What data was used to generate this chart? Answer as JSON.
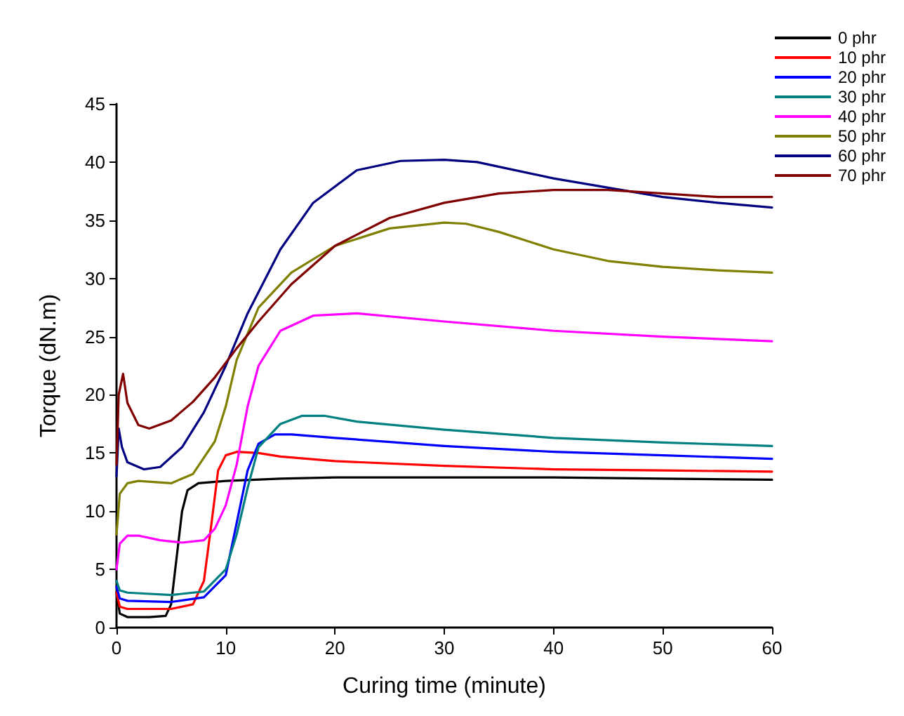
{
  "chart_data": {
    "type": "line",
    "xlabel": "Curing time (minute)",
    "ylabel": "Torque (dN.m)",
    "xlim": [
      0,
      60
    ],
    "xticks": [
      0,
      10,
      20,
      30,
      40,
      50,
      60
    ],
    "ylim": [
      0,
      45
    ],
    "yticks": [
      0,
      5,
      10,
      15,
      20,
      25,
      30,
      35,
      40,
      45
    ],
    "grid": false,
    "legend": "top right",
    "marker": "none",
    "line_style": "solid",
    "series": [
      {
        "name": "0 phr",
        "color": "#000000",
        "x": [
          0,
          0.3,
          1,
          3,
          4.5,
          5,
          5.5,
          6,
          6.5,
          7.5,
          10,
          15,
          20,
          30,
          40,
          50,
          60
        ],
        "values": [
          3,
          1.2,
          0.9,
          0.9,
          1.0,
          2,
          6,
          10,
          11.8,
          12.4,
          12.6,
          12.8,
          12.9,
          12.9,
          12.9,
          12.8,
          12.7
        ]
      },
      {
        "name": "10 phr",
        "color": "#ff0000",
        "x": [
          0,
          0.3,
          1,
          5,
          7,
          8,
          8.7,
          9.3,
          10,
          11,
          13,
          15,
          20,
          30,
          40,
          50,
          60
        ],
        "values": [
          3,
          1.8,
          1.6,
          1.6,
          2,
          4,
          9,
          13.5,
          14.8,
          15.1,
          15,
          14.7,
          14.3,
          13.9,
          13.6,
          13.5,
          13.4
        ]
      },
      {
        "name": "20 phr",
        "color": "#0000ff",
        "x": [
          0,
          0.3,
          1,
          5,
          8,
          10,
          11,
          12,
          13,
          14.5,
          16,
          20,
          30,
          40,
          50,
          60
        ],
        "values": [
          3.5,
          2.5,
          2.3,
          2.2,
          2.6,
          4.5,
          9,
          13.5,
          15.8,
          16.6,
          16.6,
          16.3,
          15.6,
          15.1,
          14.8,
          14.5
        ]
      },
      {
        "name": "30 phr",
        "color": "#008080",
        "x": [
          0,
          0.3,
          1,
          5,
          8,
          10,
          11,
          12,
          13,
          15,
          17,
          19,
          22,
          30,
          40,
          50,
          60
        ],
        "values": [
          4,
          3.2,
          3,
          2.8,
          3.1,
          5,
          8,
          12,
          15.5,
          17.5,
          18.2,
          18.2,
          17.7,
          17,
          16.3,
          15.9,
          15.6
        ]
      },
      {
        "name": "40 phr",
        "color": "#ff00ff",
        "x": [
          0,
          0.3,
          1,
          2,
          4,
          6,
          8,
          9,
          10,
          11,
          12,
          13,
          15,
          18,
          22,
          30,
          40,
          50,
          60
        ],
        "values": [
          5,
          7.2,
          7.9,
          7.9,
          7.5,
          7.3,
          7.5,
          8.5,
          10.5,
          14,
          19,
          22.5,
          25.5,
          26.8,
          27,
          26.3,
          25.5,
          25,
          24.6
        ]
      },
      {
        "name": "50 phr",
        "color": "#808000",
        "x": [
          0,
          0.3,
          1,
          2,
          5,
          7,
          9,
          10,
          11,
          13,
          16,
          20,
          25,
          30,
          32,
          35,
          40,
          45,
          50,
          55,
          60
        ],
        "values": [
          8,
          11.5,
          12.4,
          12.6,
          12.4,
          13.2,
          16,
          19,
          23,
          27.5,
          30.5,
          32.8,
          34.3,
          34.8,
          34.7,
          34,
          32.5,
          31.5,
          31,
          30.7,
          30.5
        ]
      },
      {
        "name": "60 phr",
        "color": "#000080",
        "x": [
          0,
          0.2,
          0.5,
          1,
          2.5,
          4,
          6,
          8,
          10,
          12,
          15,
          18,
          22,
          26,
          30,
          33,
          36,
          40,
          45,
          50,
          55,
          60
        ],
        "values": [
          13,
          17.1,
          15.5,
          14.2,
          13.6,
          13.8,
          15.5,
          18.5,
          22.5,
          27,
          32.5,
          36.5,
          39.3,
          40.1,
          40.2,
          40,
          39.4,
          38.6,
          37.8,
          37,
          36.5,
          36.1
        ]
      },
      {
        "name": "70 phr",
        "color": "#800000",
        "x": [
          0,
          0.2,
          0.6,
          1,
          2,
          3,
          5,
          7,
          9,
          11,
          13,
          16,
          20,
          25,
          30,
          35,
          40,
          45,
          50,
          55,
          60
        ],
        "values": [
          14,
          20,
          21.8,
          19.3,
          17.4,
          17.1,
          17.8,
          19.4,
          21.5,
          24,
          26.3,
          29.5,
          32.8,
          35.2,
          36.5,
          37.3,
          37.6,
          37.6,
          37.3,
          37,
          37
        ]
      }
    ]
  }
}
